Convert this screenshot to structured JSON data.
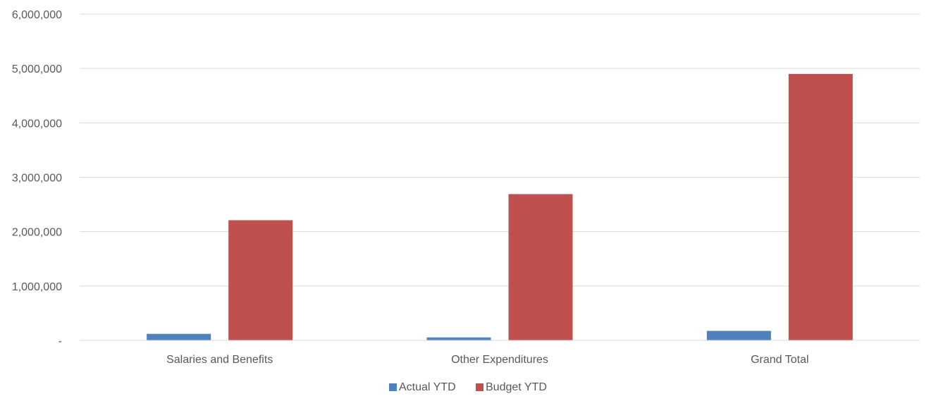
{
  "chart_data": {
    "type": "bar",
    "categories": [
      "Salaries and Benefits",
      "Other Expenditures",
      "Grand Total"
    ],
    "series": [
      {
        "name": "Actual YTD",
        "color": "#4f81bd",
        "values": [
          120000,
          55000,
          175000
        ]
      },
      {
        "name": "Budget YTD",
        "color": "#c0504d",
        "values": [
          2210000,
          2690000,
          4900000
        ]
      }
    ],
    "ylim": [
      0,
      6000000
    ],
    "yticks": [
      {
        "value": 0,
        "label": "-"
      },
      {
        "value": 1000000,
        "label": "1,000,000"
      },
      {
        "value": 2000000,
        "label": "2,000,000"
      },
      {
        "value": 3000000,
        "label": "3,000,000"
      },
      {
        "value": 4000000,
        "label": "4,000,000"
      },
      {
        "value": 5000000,
        "label": "5,000,000"
      },
      {
        "value": 6000000,
        "label": "6,000,000"
      }
    ],
    "grid": true,
    "legend_position": "bottom-center",
    "title": "",
    "xlabel": "",
    "ylabel": ""
  }
}
